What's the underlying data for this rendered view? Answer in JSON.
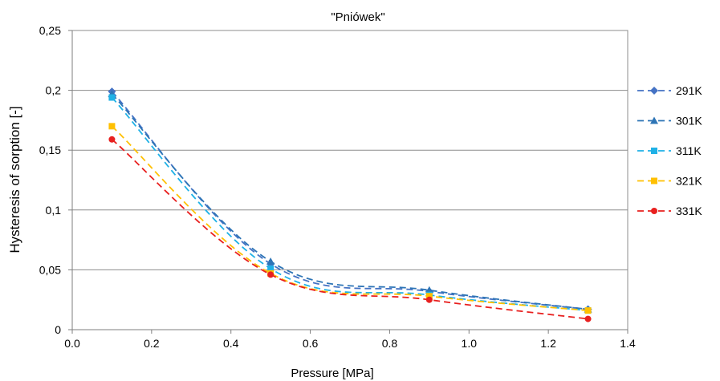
{
  "chart_data": {
    "type": "line",
    "title": "\"Pniówek\"",
    "xlabel": "Pressure [MPa]",
    "ylabel": "Hysteresis of  sorption [-]",
    "xlim": [
      0.0,
      1.4
    ],
    "ylim": [
      0,
      0.25
    ],
    "xticks": [
      0.0,
      0.2,
      0.4,
      0.6,
      0.8,
      1.0,
      1.2,
      1.4
    ],
    "xtick_labels": [
      "0.0",
      "0.2",
      "0.4",
      "0.6",
      "0.8",
      "1.0",
      "1.2",
      "1.4"
    ],
    "yticks": [
      0,
      0.05,
      0.1,
      0.15,
      0.2,
      0.25
    ],
    "ytick_labels": [
      "0",
      "0,05",
      "0,1",
      "0,15",
      "0,2",
      "0,25"
    ],
    "grid": "horizontal",
    "legend_position": "right",
    "series": [
      {
        "name": "291K",
        "color": "#4472C4",
        "marker": "diamond",
        "x": [
          0.1,
          0.5,
          0.9,
          1.3
        ],
        "y": [
          0.199,
          0.055,
          0.032,
          0.017
        ]
      },
      {
        "name": "301K",
        "color": "#2E75B6",
        "marker": "triangle",
        "x": [
          0.1,
          0.5,
          0.9,
          1.3
        ],
        "y": [
          0.197,
          0.057,
          0.033,
          0.017
        ]
      },
      {
        "name": "311K",
        "color": "#1FB1E6",
        "marker": "square",
        "x": [
          0.1,
          0.5,
          0.9,
          1.3
        ],
        "y": [
          0.194,
          0.051,
          0.029,
          0.016
        ]
      },
      {
        "name": "321K",
        "color": "#FFC000",
        "marker": "square",
        "x": [
          0.1,
          0.5,
          0.9,
          1.3
        ],
        "y": [
          0.17,
          0.047,
          0.028,
          0.016
        ]
      },
      {
        "name": "331K",
        "color": "#E8201F",
        "marker": "circle",
        "x": [
          0.1,
          0.5,
          0.9,
          1.3
        ],
        "y": [
          0.159,
          0.046,
          0.025,
          0.009
        ]
      }
    ]
  }
}
